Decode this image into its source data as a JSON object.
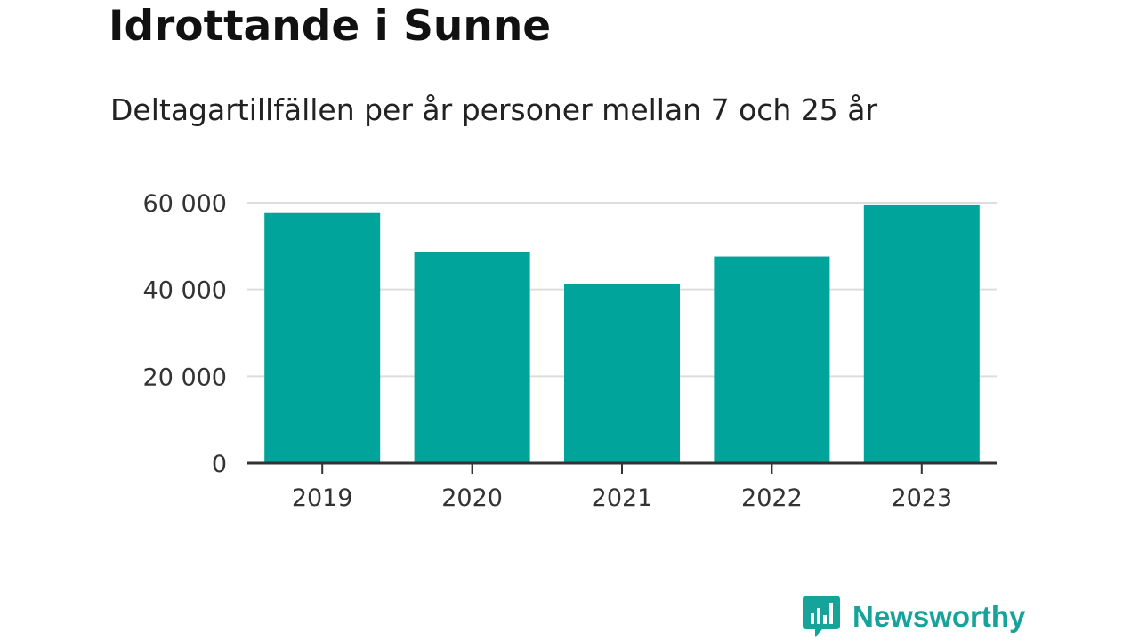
{
  "header": {
    "title": "Idrottande i Sunne",
    "subtitle": "Deltagartillfällen per år personer mellan 7 och 25 år"
  },
  "brand": {
    "name": "Newsworthy",
    "color": "#16a39a"
  },
  "chart_data": {
    "type": "bar",
    "categories": [
      "2019",
      "2020",
      "2021",
      "2022",
      "2023"
    ],
    "values": [
      57600,
      48600,
      41200,
      47600,
      59400
    ],
    "ylim": [
      0,
      60000
    ],
    "yticks": [
      0,
      20000,
      40000,
      60000
    ],
    "ytick_labels": [
      "0",
      "20 000",
      "40 000",
      "60 000"
    ],
    "grid": true,
    "bar_color": "#00a49a",
    "xlabel": "",
    "ylabel": ""
  }
}
